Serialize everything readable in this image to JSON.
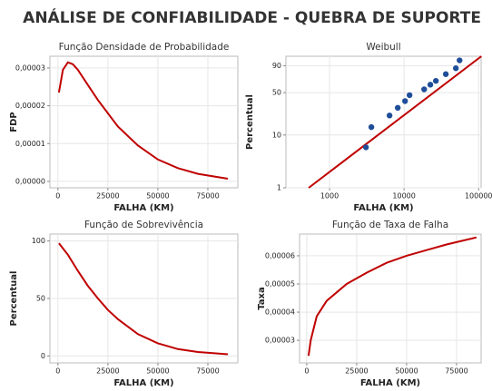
{
  "title": "ANÁLISE DE CONFIABILIDADE - QUEBRA DE SUPORTE",
  "chart_data": [
    {
      "type": "line",
      "title": "Função Densidade de Probabilidade",
      "xlabel": "FALHA (KM)",
      "ylabel": "FDP",
      "color": "#c00000",
      "grid": true,
      "x": [
        500,
        2500,
        5000,
        7500,
        10000,
        15000,
        20000,
        25000,
        30000,
        40000,
        50000,
        60000,
        70000,
        85000
      ],
      "values": [
        2.35e-05,
        2.95e-05,
        3.15e-05,
        3.1e-05,
        2.95e-05,
        2.55e-05,
        2.15e-05,
        1.8e-05,
        1.45e-05,
        9.5e-06,
        5.8e-06,
        3.5e-06,
        2e-06,
        7e-07
      ],
      "xlim": [
        -4000,
        90000
      ],
      "xticks": [
        0,
        25000,
        50000,
        75000
      ],
      "ylim": [
        -1.7e-06,
        3.31e-05
      ],
      "yticks": [
        {
          "value": 0,
          "label": "0,00000"
        },
        {
          "value": 1e-05,
          "label": "0,00001"
        },
        {
          "value": 2e-05,
          "label": "0,00002"
        },
        {
          "value": 3e-05,
          "label": "0,00003"
        }
      ]
    },
    {
      "type": "scatter",
      "title": "Weibull",
      "xlabel": "FALHA (KM)",
      "ylabel": "Percentual",
      "color": "#1f4e99",
      "line_color": "#c00000",
      "grid": true,
      "xscale": "log",
      "yscale": "weibull",
      "x": [
        3080,
        3640,
        6380,
        8220,
        10300,
        11840,
        18600,
        22500,
        26700,
        36300,
        49500,
        55500
      ],
      "values": [
        5.9,
        13.9,
        22.2,
        29.8,
        37.9,
        46.2,
        55.2,
        62.8,
        69.0,
        79.4,
        87.2,
        94.6
      ],
      "fit": {
        "x": [
          525,
          109000
        ],
        "values": [
          1,
          97
        ]
      },
      "xlim": [
        260,
        108000
      ],
      "xticks": [
        1000,
        10000,
        100000
      ],
      "ylim": [
        1,
        97
      ],
      "yticks": [
        1,
        10,
        50,
        90
      ]
    },
    {
      "type": "line",
      "title": "Função de Sobrevivência",
      "xlabel": "FALHA (KM)",
      "ylabel": "Percentual",
      "color": "#c00000",
      "grid": true,
      "x": [
        500,
        5000,
        10000,
        15000,
        20000,
        25000,
        30000,
        40000,
        50000,
        60000,
        70000,
        85000
      ],
      "values": [
        98,
        88,
        74,
        61,
        50,
        40,
        32,
        19,
        11,
        6,
        3.5,
        1.5
      ],
      "xlim": [
        -4000,
        90000
      ],
      "xticks": [
        0,
        25000,
        50000,
        75000
      ],
      "ylim": [
        -6,
        106
      ],
      "yticks": [
        0,
        50,
        100
      ]
    },
    {
      "type": "line",
      "title": "Função de Taxa de Falha",
      "xlabel": "FALHA (KM)",
      "ylabel": "Taxa",
      "color": "#c00000",
      "grid": true,
      "x": [
        900,
        2000,
        5000,
        10000,
        20000,
        30000,
        40000,
        50000,
        60000,
        70000,
        85000
      ],
      "values": [
        2.45e-05,
        3e-05,
        3.85e-05,
        4.4e-05,
        5e-05,
        5.4e-05,
        5.75e-05,
        6e-05,
        6.2e-05,
        6.4e-05,
        6.65e-05
      ],
      "xlim": [
        -3600,
        87300
      ],
      "xticks": [
        0,
        25000,
        50000,
        75000
      ],
      "ylim": [
        2.2e-05,
        6.77e-05
      ],
      "yticks": [
        {
          "value": 3e-05,
          "label": "0,00003"
        },
        {
          "value": 4e-05,
          "label": "0,00004"
        },
        {
          "value": 5e-05,
          "label": "0,00005"
        },
        {
          "value": 6e-05,
          "label": "0,00006"
        }
      ]
    }
  ]
}
